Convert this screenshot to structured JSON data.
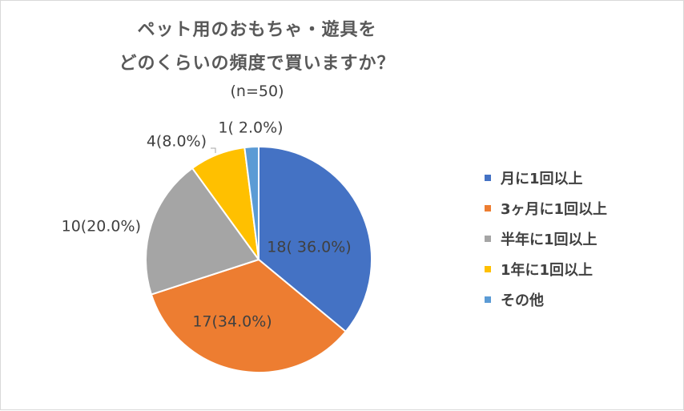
{
  "chart_data": {
    "type": "pie",
    "title_lines": [
      "ペット用のおもちゃ・遊具を",
      "どのくらいの頻度で買いますか？"
    ],
    "subtitle": "(n=50)",
    "categories": [
      "月に1回以上",
      "3ヶ月に1回以上",
      "半年に1回以上",
      "1年に1回以上",
      "その他"
    ],
    "values": [
      18,
      17,
      10,
      4,
      1
    ],
    "percentages": [
      36.0,
      34.0,
      20.0,
      8.0,
      2.0
    ],
    "data_labels": [
      "18( 36.0%)",
      "17(34.0%)",
      "10(20.0%)",
      "4(8.0%)",
      "1( 2.0%)"
    ],
    "colors": [
      "#4472c4",
      "#ed7d31",
      "#a5a5a5",
      "#ffc000",
      "#5b9bd5"
    ],
    "legend_position": "right",
    "start_angle": "12 o'clock, clockwise"
  }
}
